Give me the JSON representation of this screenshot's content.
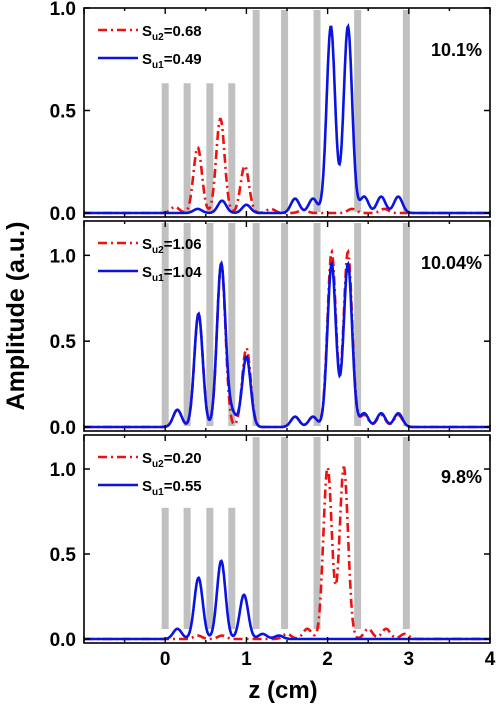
{
  "figure": {
    "ylabel": "Amplitude (a.u.)",
    "xlabel": "z (cm)",
    "x_ticks": [
      "0",
      "1",
      "2",
      "3",
      "4"
    ],
    "colors": {
      "red": "#ee1111",
      "blue": "#0a14e0",
      "bar": "#c0c0c0",
      "axis": "#000000"
    }
  },
  "chart_data": [
    {
      "type": "line",
      "annotation": "10.1%",
      "xlim": [
        -1,
        4
      ],
      "ylim": [
        0,
        1
      ],
      "y_ticks": [
        "0.0",
        "0.5",
        "1.0"
      ],
      "legend": [
        {
          "sub": "u2",
          "value": "=0.68",
          "color": "red",
          "style": "dashdot"
        },
        {
          "sub": "u1",
          "value": "=0.49",
          "color": "blue",
          "style": "solid"
        }
      ],
      "gray_bars": [
        0.0,
        0.27,
        0.55,
        0.82,
        1.12,
        1.47,
        1.87,
        2.37,
        2.97
      ],
      "series": [
        {
          "color": "red",
          "style": "dashdot",
          "peaks": [
            [
              0.12,
              0.03
            ],
            [
              0.4,
              0.32
            ],
            [
              0.68,
              0.46
            ],
            [
              0.98,
              0.23
            ],
            [
              1.3,
              0.02
            ],
            [
              1.7,
              0.015
            ],
            [
              2.3,
              0.02
            ],
            [
              2.7,
              0.02
            ]
          ]
        },
        {
          "color": "blue",
          "style": "solid",
          "peaks": [
            [
              0.4,
              0.02
            ],
            [
              0.7,
              0.06
            ],
            [
              1.0,
              0.04
            ],
            [
              1.6,
              0.07
            ],
            [
              1.82,
              0.07
            ],
            [
              2.04,
              0.91
            ],
            [
              2.25,
              0.91
            ],
            [
              2.45,
              0.08
            ],
            [
              2.66,
              0.08
            ],
            [
              2.87,
              0.08
            ]
          ]
        }
      ]
    },
    {
      "type": "line",
      "annotation": "10.04%",
      "xlim": [
        -1,
        4
      ],
      "ylim": [
        0,
        1.2
      ],
      "y_ticks": [
        "0.0",
        "0.5",
        "1.0"
      ],
      "legend": [
        {
          "sub": "u2",
          "value": "=1.06",
          "color": "red",
          "style": "dashdot"
        },
        {
          "sub": "u1",
          "value": "=1.04",
          "color": "blue",
          "style": "solid"
        }
      ],
      "gray_bars": [
        0.0,
        0.27,
        0.55,
        0.82,
        1.12,
        1.47,
        1.87,
        2.37,
        2.97
      ],
      "series": [
        {
          "color": "red",
          "style": "dashdot",
          "peaks": [
            [
              0.15,
              0.1
            ],
            [
              0.41,
              0.66
            ],
            [
              0.69,
              0.95
            ],
            [
              1.0,
              0.46
            ],
            [
              1.6,
              0.06
            ],
            [
              1.82,
              0.06
            ],
            [
              2.05,
              1.02
            ],
            [
              2.25,
              1.02
            ],
            [
              2.45,
              0.07
            ],
            [
              2.66,
              0.07
            ],
            [
              2.87,
              0.07
            ]
          ]
        },
        {
          "color": "blue",
          "style": "solid",
          "peaks": [
            [
              0.15,
              0.1
            ],
            [
              0.41,
              0.66
            ],
            [
              0.69,
              0.95
            ],
            [
              1.0,
              0.41
            ],
            [
              0.82,
              0.08
            ],
            [
              1.6,
              0.06
            ],
            [
              1.82,
              0.06
            ],
            [
              2.05,
              0.95
            ],
            [
              2.25,
              0.95
            ],
            [
              2.45,
              0.08
            ],
            [
              2.66,
              0.08
            ],
            [
              2.87,
              0.08
            ]
          ]
        }
      ]
    },
    {
      "type": "line",
      "annotation": "9.8%",
      "xlim": [
        -1,
        4
      ],
      "ylim": [
        0,
        1.2
      ],
      "y_ticks": [
        "0.0",
        "0.5",
        "1.0"
      ],
      "legend": [
        {
          "sub": "u2",
          "value": "=0.20",
          "color": "red",
          "style": "dashdot"
        },
        {
          "sub": "u1",
          "value": "=0.55",
          "color": "blue",
          "style": "solid"
        }
      ],
      "gray_bars": [
        0.0,
        0.27,
        0.55,
        0.82,
        1.12,
        1.47,
        1.87,
        2.37,
        2.97
      ],
      "series": [
        {
          "color": "red",
          "style": "dashdot",
          "peaks": [
            [
              0.4,
              0.02
            ],
            [
              0.7,
              0.02
            ],
            [
              1.5,
              0.03
            ],
            [
              1.75,
              0.06
            ],
            [
              2.0,
              1.01
            ],
            [
              2.2,
              1.01
            ],
            [
              2.5,
              0.06
            ],
            [
              2.72,
              0.06
            ],
            [
              2.95,
              0.03
            ]
          ]
        },
        {
          "color": "blue",
          "style": "solid",
          "peaks": [
            [
              0.15,
              0.06
            ],
            [
              0.41,
              0.36
            ],
            [
              0.69,
              0.46
            ],
            [
              0.97,
              0.26
            ],
            [
              1.2,
              0.03
            ],
            [
              1.4,
              0.02
            ]
          ]
        }
      ]
    }
  ]
}
